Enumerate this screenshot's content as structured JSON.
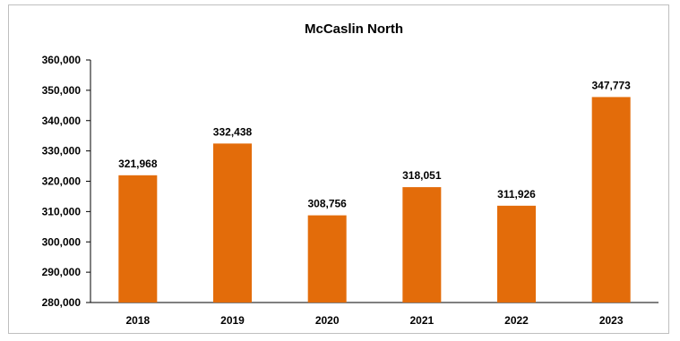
{
  "chart_data": {
    "type": "bar",
    "title": "McCaslin North",
    "xlabel": "",
    "ylabel": "",
    "categories": [
      "2018",
      "2019",
      "2020",
      "2021",
      "2022",
      "2023"
    ],
    "values": [
      321968,
      332438,
      308756,
      318051,
      311926,
      347773
    ],
    "value_labels": [
      "321,968",
      "332,438",
      "308,756",
      "318,051",
      "311,926",
      "347,773"
    ],
    "ylim": [
      280000,
      360000
    ],
    "yticks": [
      280000,
      290000,
      300000,
      310000,
      320000,
      330000,
      340000,
      350000,
      360000
    ],
    "ytick_labels": [
      "280,000",
      "290,000",
      "300,000",
      "310,000",
      "320,000",
      "330,000",
      "340,000",
      "350,000",
      "360,000"
    ],
    "grid": false,
    "legend": "none",
    "bar_color": "#E36C0A"
  }
}
